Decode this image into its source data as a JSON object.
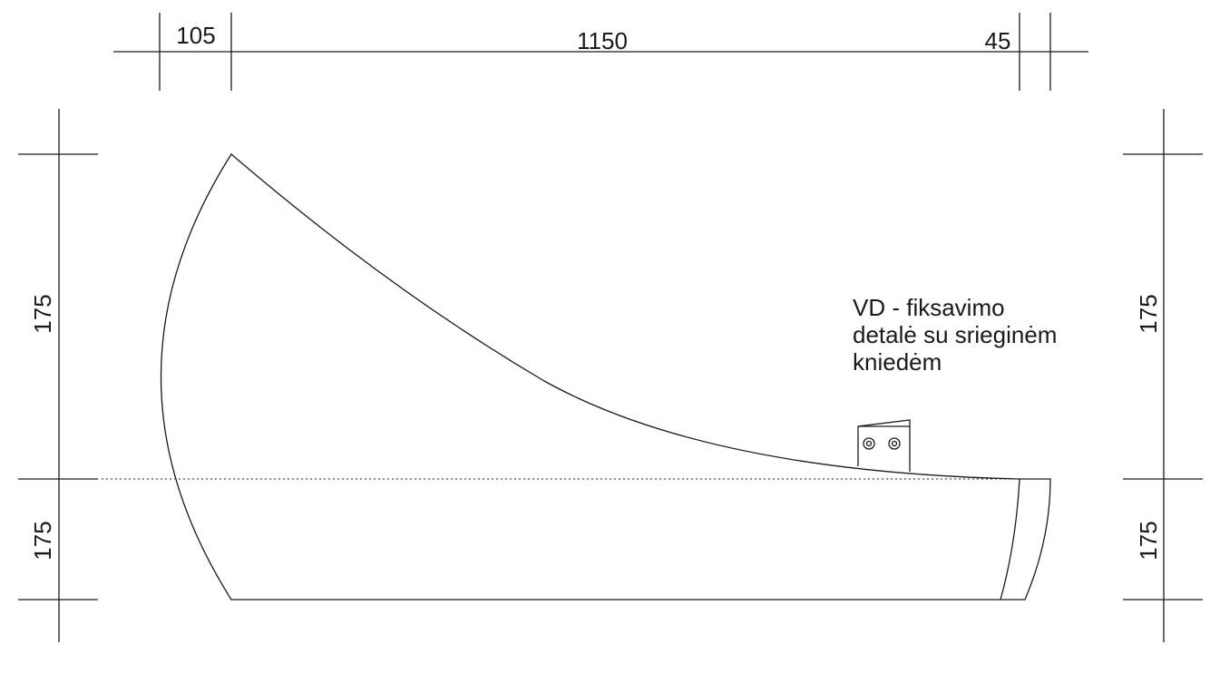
{
  "dimensions": {
    "top": [
      "105",
      "1150",
      "45"
    ],
    "left_upper": "175",
    "left_lower": "175",
    "right_upper": "175",
    "right_lower": "175"
  },
  "note": {
    "lines": [
      "VD - fiksavimo",
      "detalė su srieginėm",
      "kniedėm"
    ]
  },
  "colors": {
    "stroke": "#1a1a1a",
    "background": "#ffffff"
  }
}
